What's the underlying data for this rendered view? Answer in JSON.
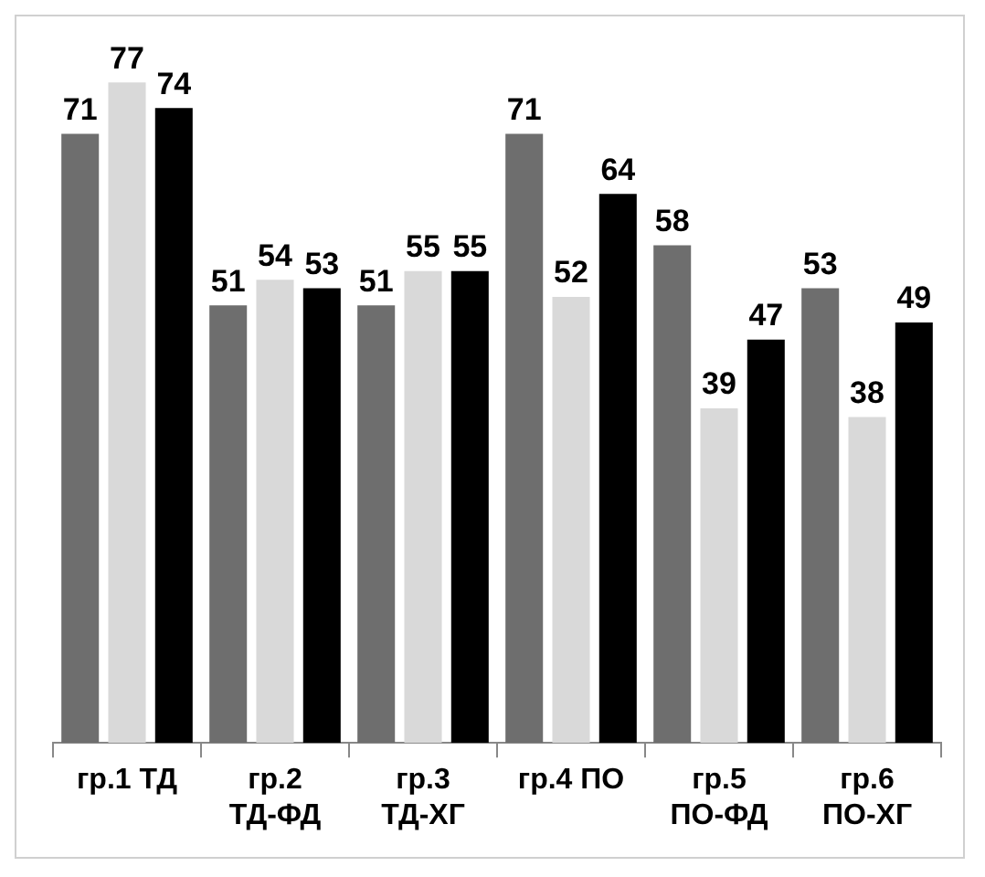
{
  "chart_data": {
    "type": "bar",
    "categories": [
      "гр.1 ТД",
      "гр.2 ТД-ФД",
      "гр.3 ТД-ХГ",
      "гр.4 ПО",
      "гр.5 ПО-ФД",
      "гр.6 ПО-ХГ"
    ],
    "series": [
      {
        "color": "#6e6e6e",
        "values": [
          71,
          51,
          51,
          71,
          58,
          53
        ]
      },
      {
        "color": "#d9d9d9",
        "values": [
          77,
          54,
          55,
          52,
          39,
          38
        ]
      },
      {
        "color": "#000000",
        "values": [
          74,
          53,
          55,
          64,
          47,
          49
        ]
      }
    ],
    "data_labels": true,
    "grid": false,
    "legend": false,
    "tick_labels": "x"
  }
}
